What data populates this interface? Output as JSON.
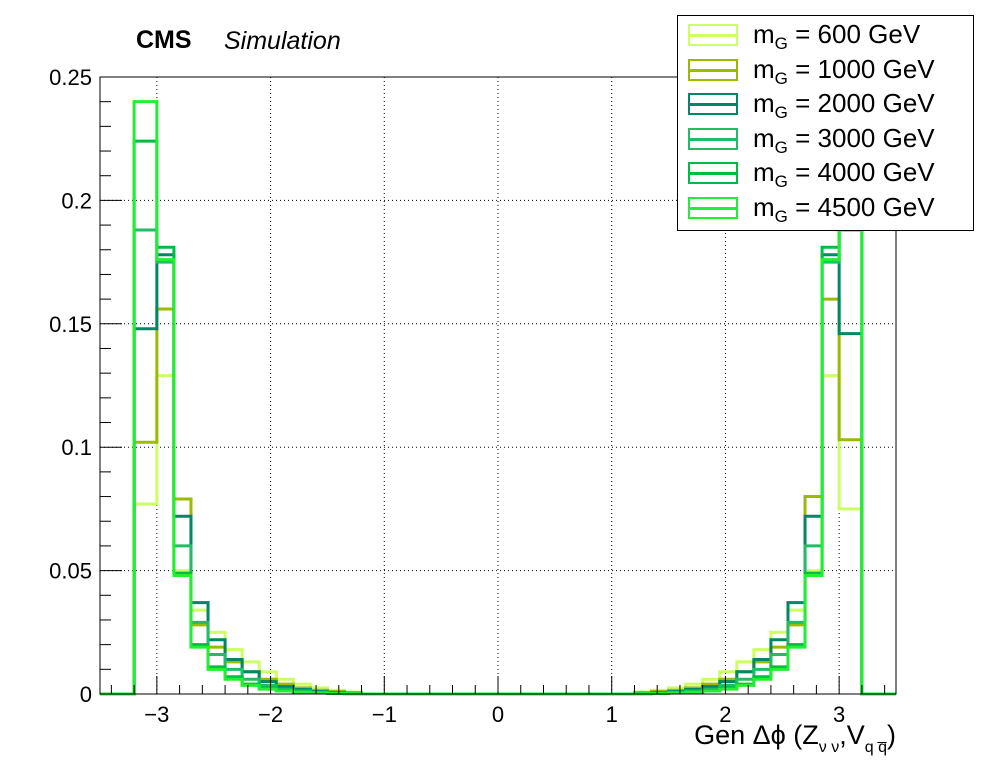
{
  "header": {
    "cms": "CMS",
    "simulation": "Simulation"
  },
  "chart_data": {
    "type": "line",
    "style": "step-histogram",
    "xlabel": {
      "prefix": "Gen Δϕ (Z",
      "sub1": "ν ν",
      "mid": ",V",
      "sub2": "q q̅",
      "suffix": ")"
    },
    "ylabel": "",
    "xlim": [
      -3.5,
      3.5
    ],
    "ylim": [
      0,
      0.25
    ],
    "grid": true,
    "legend_position": "top-right",
    "xticks": [
      -3,
      -2,
      -1,
      0,
      1,
      2,
      3
    ],
    "xtick_labels": [
      "−3",
      "−2",
      "−1",
      "0",
      "1",
      "2",
      "3"
    ],
    "yticks": [
      0,
      0.05,
      0.1,
      0.15,
      0.2,
      0.25
    ],
    "ytick_labels": [
      "0",
      "0.05",
      "0.1",
      "0.15",
      "0.2",
      "0.25"
    ],
    "bin_edges_x": [
      -3.2,
      -3.0,
      -2.85,
      -2.7,
      -2.55,
      -2.4,
      -2.25,
      -2.1,
      -1.95,
      -1.8,
      -1.65,
      -1.5,
      -1.35,
      -1.2,
      1.2,
      1.35,
      1.5,
      1.65,
      1.8,
      1.95,
      2.1,
      2.25,
      2.4,
      2.55,
      2.7,
      2.85,
      3.0,
      3.2
    ],
    "series": [
      {
        "name": "m_G = 600 GeV",
        "mass": "600",
        "color": "#ccff66",
        "values": [
          0.077,
          0.129,
          0.05,
          0.034,
          0.025,
          0.018,
          0.013,
          0.009,
          0.006,
          0.004,
          0.0025,
          0.0015,
          0.0008,
          0,
          0.0008,
          0.0015,
          0.0025,
          0.004,
          0.006,
          0.009,
          0.013,
          0.018,
          0.025,
          0.034,
          0.05,
          0.129,
          0.075
        ]
      },
      {
        "name": "m_G = 1000 GeV",
        "mass": "1000",
        "color": "#99bb00",
        "values": [
          0.102,
          0.156,
          0.079,
          0.028,
          0.019,
          0.013,
          0.009,
          0.006,
          0.004,
          0.0025,
          0.0015,
          0.001,
          0.0005,
          0,
          0.0005,
          0.001,
          0.0015,
          0.0025,
          0.004,
          0.006,
          0.009,
          0.013,
          0.019,
          0.028,
          0.08,
          0.16,
          0.103
        ]
      },
      {
        "name": "m_G = 2000 GeV",
        "mass": "2000",
        "color": "#008866",
        "values": [
          0.148,
          0.178,
          0.072,
          0.037,
          0.022,
          0.014,
          0.009,
          0.005,
          0.003,
          0.0018,
          0.001,
          0.0006,
          0.0003,
          0,
          0.0003,
          0.0006,
          0.001,
          0.0018,
          0.003,
          0.005,
          0.009,
          0.014,
          0.022,
          0.037,
          0.072,
          0.178,
          0.146
        ]
      },
      {
        "name": "m_G = 3000 GeV",
        "mass": "3000",
        "color": "#22bb66",
        "values": [
          0.188,
          0.175,
          0.06,
          0.029,
          0.016,
          0.01,
          0.006,
          0.0035,
          0.002,
          0.0012,
          0.0007,
          0.0004,
          0.0002,
          0,
          0.0002,
          0.0004,
          0.0007,
          0.0012,
          0.002,
          0.0035,
          0.006,
          0.01,
          0.016,
          0.029,
          0.06,
          0.175,
          0.188
        ]
      },
      {
        "name": "m_G = 4000 GeV",
        "mass": "4000",
        "color": "#00bb44",
        "values": [
          0.224,
          0.181,
          0.049,
          0.02,
          0.011,
          0.007,
          0.004,
          0.0025,
          0.0015,
          0.0009,
          0.0005,
          0.0003,
          0.0001,
          0,
          0.0001,
          0.0003,
          0.0005,
          0.0009,
          0.0015,
          0.0025,
          0.004,
          0.007,
          0.011,
          0.02,
          0.049,
          0.181,
          0.224
        ]
      },
      {
        "name": "m_G = 4500 GeV",
        "mass": "4500",
        "color": "#22ee33",
        "values": [
          0.24,
          0.176,
          0.048,
          0.019,
          0.01,
          0.006,
          0.0035,
          0.002,
          0.0012,
          0.0007,
          0.0004,
          0.0002,
          0.0001,
          0,
          0.0001,
          0.0002,
          0.0004,
          0.0007,
          0.0012,
          0.002,
          0.0035,
          0.006,
          0.01,
          0.019,
          0.048,
          0.176,
          0.24
        ]
      }
    ]
  }
}
